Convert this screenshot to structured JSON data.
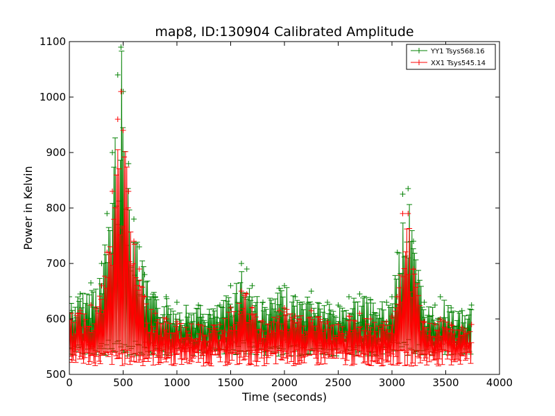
{
  "chart_data": {
    "type": "line",
    "title": "map8, ID:130904 Calibrated Amplitude",
    "xlabel": "Time (seconds)",
    "ylabel": "Power in Kelvin",
    "xlim": [
      0,
      4000
    ],
    "ylim": [
      500,
      1100
    ],
    "xticks": [
      "0",
      "500",
      "1000",
      "1500",
      "2000",
      "2500",
      "3000",
      "3500",
      "4000"
    ],
    "yticks": [
      "500",
      "600",
      "700",
      "800",
      "900",
      "1000",
      "1100"
    ],
    "grid": false,
    "legend_position": "top-right",
    "series": [
      {
        "name": "YY1 Tsys568.16",
        "color": "#008000",
        "x": [
          0,
          100,
          200,
          300,
          350,
          400,
          450,
          480,
          500,
          550,
          600,
          650,
          700,
          800,
          900,
          1000,
          1200,
          1400,
          1500,
          1600,
          1650,
          1700,
          1800,
          1950,
          2000,
          2100,
          2250,
          2400,
          2500,
          2600,
          2700,
          2800,
          2950,
          3000,
          3050,
          3100,
          3150,
          3200,
          3300,
          3400,
          3450,
          3550,
          3650,
          3740
        ],
        "y": [
          640,
          645,
          665,
          700,
          790,
          900,
          1040,
          1090,
          1010,
          880,
          780,
          730,
          680,
          640,
          640,
          630,
          625,
          625,
          660,
          700,
          690,
          660,
          630,
          655,
          660,
          640,
          650,
          630,
          625,
          640,
          645,
          635,
          630,
          640,
          720,
          825,
          835,
          740,
          630,
          625,
          640,
          620,
          615,
          625
        ]
      },
      {
        "name": "XX1 Tsys545.14",
        "color": "#ff0000",
        "x": [
          0,
          100,
          200,
          300,
          350,
          400,
          450,
          480,
          500,
          550,
          600,
          650,
          700,
          800,
          900,
          1000,
          1200,
          1400,
          1500,
          1600,
          1650,
          1700,
          1800,
          1950,
          2000,
          2100,
          2250,
          2400,
          2500,
          2600,
          2700,
          2800,
          2950,
          3000,
          3050,
          3100,
          3150,
          3200,
          3300,
          3400,
          3450,
          3550,
          3650,
          3740
        ],
        "y": [
          610,
          615,
          625,
          660,
          720,
          830,
          960,
          1010,
          940,
          830,
          740,
          690,
          640,
          610,
          600,
          595,
          590,
          590,
          620,
          650,
          645,
          620,
          595,
          615,
          620,
          605,
          615,
          595,
          590,
          605,
          610,
          600,
          595,
          605,
          640,
          790,
          790,
          690,
          595,
          590,
          600,
          590,
          585,
          590
        ]
      }
    ]
  }
}
